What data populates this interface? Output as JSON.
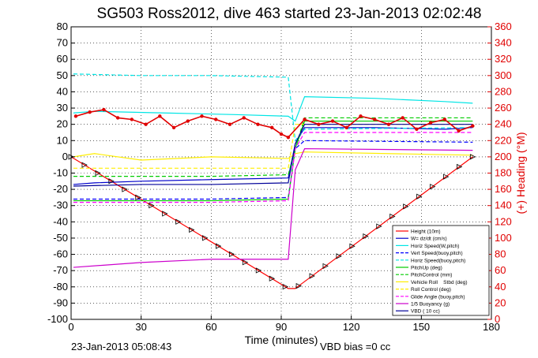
{
  "chart_data": {
    "type": "line",
    "title": "SG503 Ross2012, dive 463 started 23-Jan-2013 02:02:48",
    "xlabel": "Time (minutes)",
    "ylabel_right": "(+) Heading (°M)",
    "xlim": [
      0,
      180
    ],
    "ylim_left": [
      -100,
      80
    ],
    "ylim_right": [
      0,
      360
    ],
    "xticks": [
      "0",
      "30",
      "60",
      "90",
      "120",
      "150",
      "180"
    ],
    "yticks_left": [
      "80",
      "70",
      "60",
      "50",
      "40",
      "30",
      "20",
      "10",
      "0",
      "-10",
      "-20",
      "-30",
      "-40",
      "-50",
      "-60",
      "-70",
      "-80",
      "-90",
      "-100"
    ],
    "yticks_right": [
      "360",
      "340",
      "320",
      "300",
      "280",
      "260",
      "240",
      "220",
      "200",
      "180",
      "160",
      "140",
      "120",
      "100",
      "80",
      "60",
      "40",
      "20",
      "0"
    ],
    "grid": true,
    "legend_position": "bottom-right",
    "footer_left": "23-Jan-2013 05:08:43",
    "footer_right": "VBD bias =0 cc",
    "heading_color": "#e00000",
    "series": [
      {
        "name": "Height (10m)",
        "color": "#ff0000",
        "style": "solid",
        "x": [
          0,
          93,
          96,
          172
        ],
        "y": [
          0,
          -81,
          -81,
          0
        ]
      },
      {
        "name": "W= dz/dt (cm/s)",
        "color": "#0000cc",
        "style": "solid",
        "x": [
          1,
          10,
          30,
          60,
          93,
          96,
          100,
          130,
          160,
          172
        ],
        "y": [
          -17,
          -16,
          -15,
          -14,
          -13,
          8,
          18,
          18,
          17,
          18
        ]
      },
      {
        "name": "Horiz Speed(W,pitch)",
        "color": "#00e5e5",
        "style": "solid",
        "x": [
          1,
          10,
          40,
          70,
          93,
          96,
          100,
          130,
          160,
          172
        ],
        "y": [
          27,
          28,
          27,
          26,
          25,
          22,
          37,
          36,
          34,
          33
        ]
      },
      {
        "name": "Vert Speed(buoy,pitch)",
        "color": "#0000ff",
        "style": "dashed",
        "x": [
          1,
          30,
          60,
          93,
          96,
          100,
          172
        ],
        "y": [
          -26,
          -26,
          -26,
          -25,
          5,
          10,
          9
        ]
      },
      {
        "name": "Horiz Speed(buoy,pitch)",
        "color": "#00e5e5",
        "style": "dashed",
        "x": [
          1,
          30,
          60,
          93,
          96,
          100,
          172
        ],
        "y": [
          51,
          50,
          50,
          49,
          10,
          17,
          18
        ]
      },
      {
        "name": "PitchUp (deg)",
        "color": "#00cc00",
        "style": "solid",
        "x": [
          1,
          30,
          60,
          93,
          96,
          100,
          172
        ],
        "y": [
          -27,
          -27,
          -27,
          -26,
          5,
          22,
          22
        ]
      },
      {
        "name": "PitchControl (mm)",
        "color": "#00cc00",
        "style": "dashed",
        "x": [
          1,
          30,
          60,
          93,
          96,
          100,
          172
        ],
        "y": [
          -12,
          -12,
          -12,
          -11,
          5,
          24,
          24
        ]
      },
      {
        "name": "Vehicle Roll    Stbd (deg)",
        "color": "#ffee00",
        "style": "solid",
        "x": [
          1,
          10,
          30,
          60,
          93,
          96,
          100,
          172
        ],
        "y": [
          0,
          2,
          -2,
          0,
          -1,
          2,
          3,
          1
        ]
      },
      {
        "name": "Roll Control (deg)",
        "color": "#ffee00",
        "style": "dashed",
        "x": [
          1,
          30,
          60,
          93,
          96,
          100,
          172
        ],
        "y": [
          -7,
          -7,
          -7,
          -7,
          20,
          20,
          20
        ]
      },
      {
        "name": "Glide Angle (buoy,pitch)",
        "color": "#ff00ff",
        "style": "dashed",
        "x": [
          1,
          30,
          60,
          93,
          96,
          100,
          172
        ],
        "y": [
          -28,
          -28,
          -28,
          -27,
          5,
          15,
          15
        ]
      },
      {
        "name": "1/5 Buoyancy (g)",
        "color": "#cc00cc",
        "style": "solid",
        "x": [
          1,
          30,
          60,
          93,
          96,
          100,
          172
        ],
        "y": [
          -68,
          -65,
          -63,
          -63,
          -8,
          5,
          4
        ]
      },
      {
        "name": "VBD ( 10 cc)",
        "color": "#000099",
        "style": "solid",
        "x": [
          1,
          30,
          60,
          93,
          96,
          100,
          172
        ],
        "y": [
          -18,
          -17,
          -17,
          -16,
          8,
          20,
          20
        ]
      },
      {
        "name": "Heading",
        "color": "#e00000",
        "style": "marker",
        "x": [
          2,
          8,
          14,
          20,
          26,
          32,
          38,
          44,
          50,
          56,
          62,
          68,
          74,
          80,
          86,
          90,
          93,
          100,
          106,
          112,
          118,
          124,
          130,
          136,
          142,
          148,
          154,
          160,
          166,
          172
        ],
        "y": [
          250,
          255,
          258,
          248,
          246,
          240,
          250,
          236,
          244,
          250,
          246,
          240,
          248,
          240,
          236,
          228,
          224,
          246,
          240,
          244,
          236,
          250,
          246,
          240,
          248,
          234,
          242,
          246,
          232,
          238
        ]
      }
    ]
  }
}
